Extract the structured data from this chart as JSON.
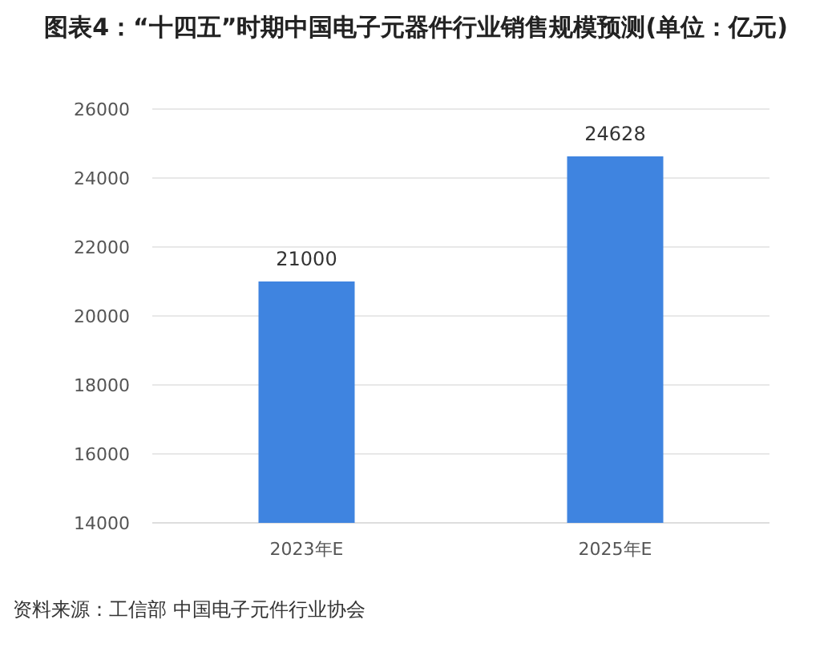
{
  "chart_data": {
    "type": "bar",
    "title": "图表4：“十四五”时期中国电子元器件行业销售规模预测(单位：亿元)",
    "categories": [
      "2023年E",
      "2025年E"
    ],
    "series": [
      {
        "color": "#3f84e0",
        "values": [
          21000,
          24628
        ]
      }
    ],
    "ylim": [
      14000,
      26000
    ],
    "yticks": [
      14000,
      16000,
      18000,
      20000,
      22000,
      24000,
      26000
    ],
    "grid": "y",
    "data_labels": true,
    "annotations": [
      "资料来源：工信部 中国电子元件行业协会"
    ]
  }
}
